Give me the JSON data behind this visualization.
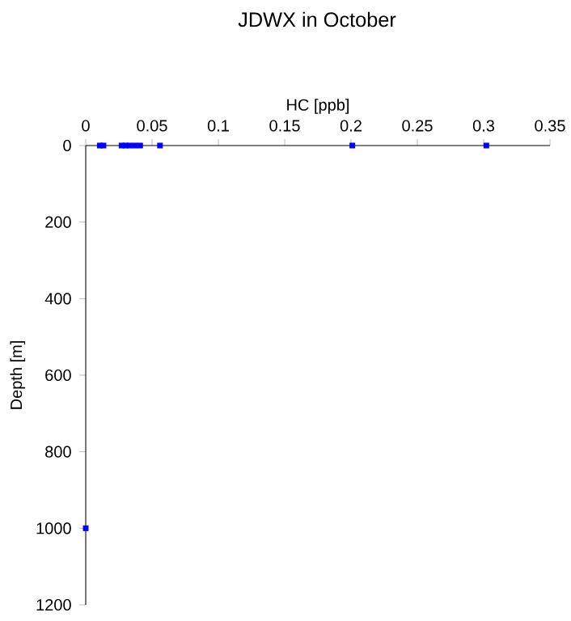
{
  "chart_data": {
    "type": "scatter",
    "title": "JDWX in October",
    "xlabel": "HC [ppb]",
    "ylabel": "Depth [m]",
    "series": [
      {
        "color": "#0000ff",
        "x": [
          0.0106,
          0.0134,
          0.027,
          0.03,
          0.033,
          0.037,
          0.041,
          0.056,
          0.201,
          0.302,
          0.0
        ],
        "values": [
          0,
          0,
          0,
          0,
          0,
          0,
          0,
          0,
          0,
          0,
          1000
        ]
      }
    ],
    "xlim": [
      0,
      0.35
    ],
    "xticks": [
      0,
      0.05,
      0.1,
      0.15,
      0.2,
      0.25,
      0.3,
      0.35
    ],
    "ylim": [
      1200,
      0
    ],
    "yticks": [
      0,
      200,
      400,
      600,
      800,
      1000,
      1200
    ],
    "marker": "square"
  }
}
